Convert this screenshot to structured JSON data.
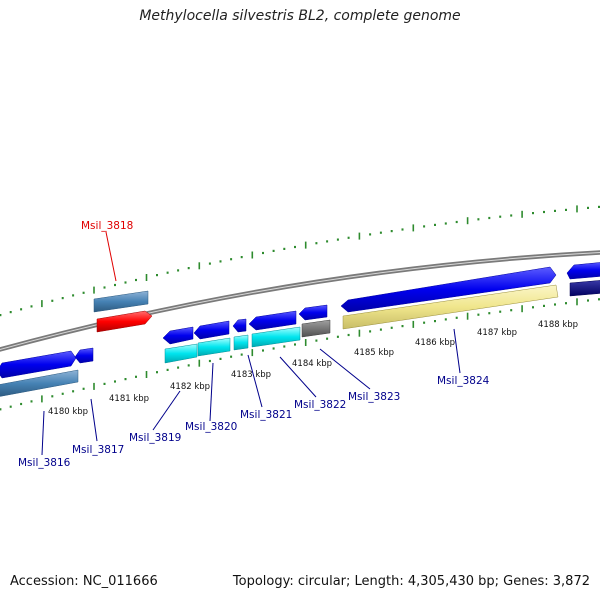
{
  "title": "Methylocella silvestris BL2, complete genome",
  "footer": {
    "accession": "Accession: NC_011666",
    "stats": "Topology: circular; Length: 4,305,430 bp; Genes: 3,872"
  },
  "colors": {
    "backbone": "#8a8a8a",
    "tick": "#2e8b2e",
    "cds_blue": "#0000ee",
    "cds_navy": "#000080",
    "cds_steel": "#4682b4",
    "rna_red": "#ff0000",
    "cds_cyan": "#00e5ee",
    "cds_gray": "#707070",
    "cds_khaki": "#f0e68c",
    "label_default": "#00008b",
    "label_highlight": "#e00000"
  },
  "scale_labels": [
    "4180 kbp",
    "4181 kbp",
    "4182 kbp",
    "4183 kbp",
    "4184 kbp",
    "4185 kbp",
    "4186 kbp",
    "4187 kbp",
    "4188 kbp"
  ],
  "gene_labels": [
    "Msil_3816",
    "Msil_3817",
    "Msil_3818",
    "Msil_3819",
    "Msil_3820",
    "Msil_3821",
    "Msil_3822",
    "Msil_3823",
    "Msil_3824"
  ]
}
